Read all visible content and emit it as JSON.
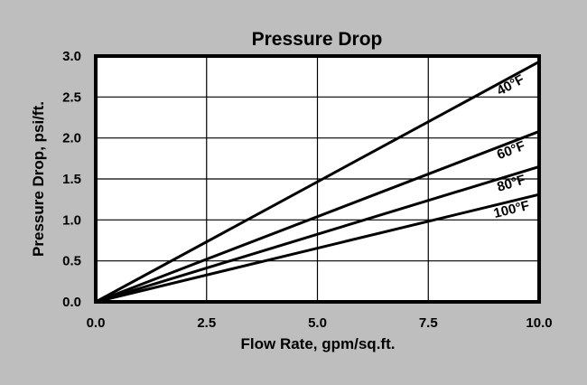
{
  "chart_data": {
    "type": "line",
    "title": "Pressure Drop",
    "xlabel": "Flow Rate, gpm/sq.ft.",
    "ylabel": "Pressure Drop, psi/ft.",
    "xlim": [
      0,
      10
    ],
    "ylim": [
      0,
      3
    ],
    "x_tick_labels": [
      "0.0",
      "2.5",
      "5.0",
      "7.5",
      "10.0"
    ],
    "x_tick_values": [
      0,
      2.5,
      5,
      7.5,
      10
    ],
    "y_tick_labels": [
      "0.0",
      "0.5",
      "1.0",
      "1.5",
      "2.0",
      "2.5",
      "3.0"
    ],
    "y_tick_values": [
      0,
      0.5,
      1,
      1.5,
      2,
      2.5,
      3
    ],
    "grid": true,
    "legend_position": "inline-labels-on-lines",
    "x": [
      0,
      10
    ],
    "series": [
      {
        "name": "40°F",
        "values": [
          0,
          2.93
        ]
      },
      {
        "name": "60°F",
        "values": [
          0,
          2.08
        ]
      },
      {
        "name": "80°F",
        "values": [
          0,
          1.65
        ]
      },
      {
        "name": "100°F",
        "values": [
          0,
          1.31
        ]
      }
    ],
    "colors": {
      "background": "#bebebe",
      "plot_background": "#ffffff",
      "line": "#000000",
      "grid": "#000000",
      "text": "#000000",
      "border": "#000000"
    }
  }
}
